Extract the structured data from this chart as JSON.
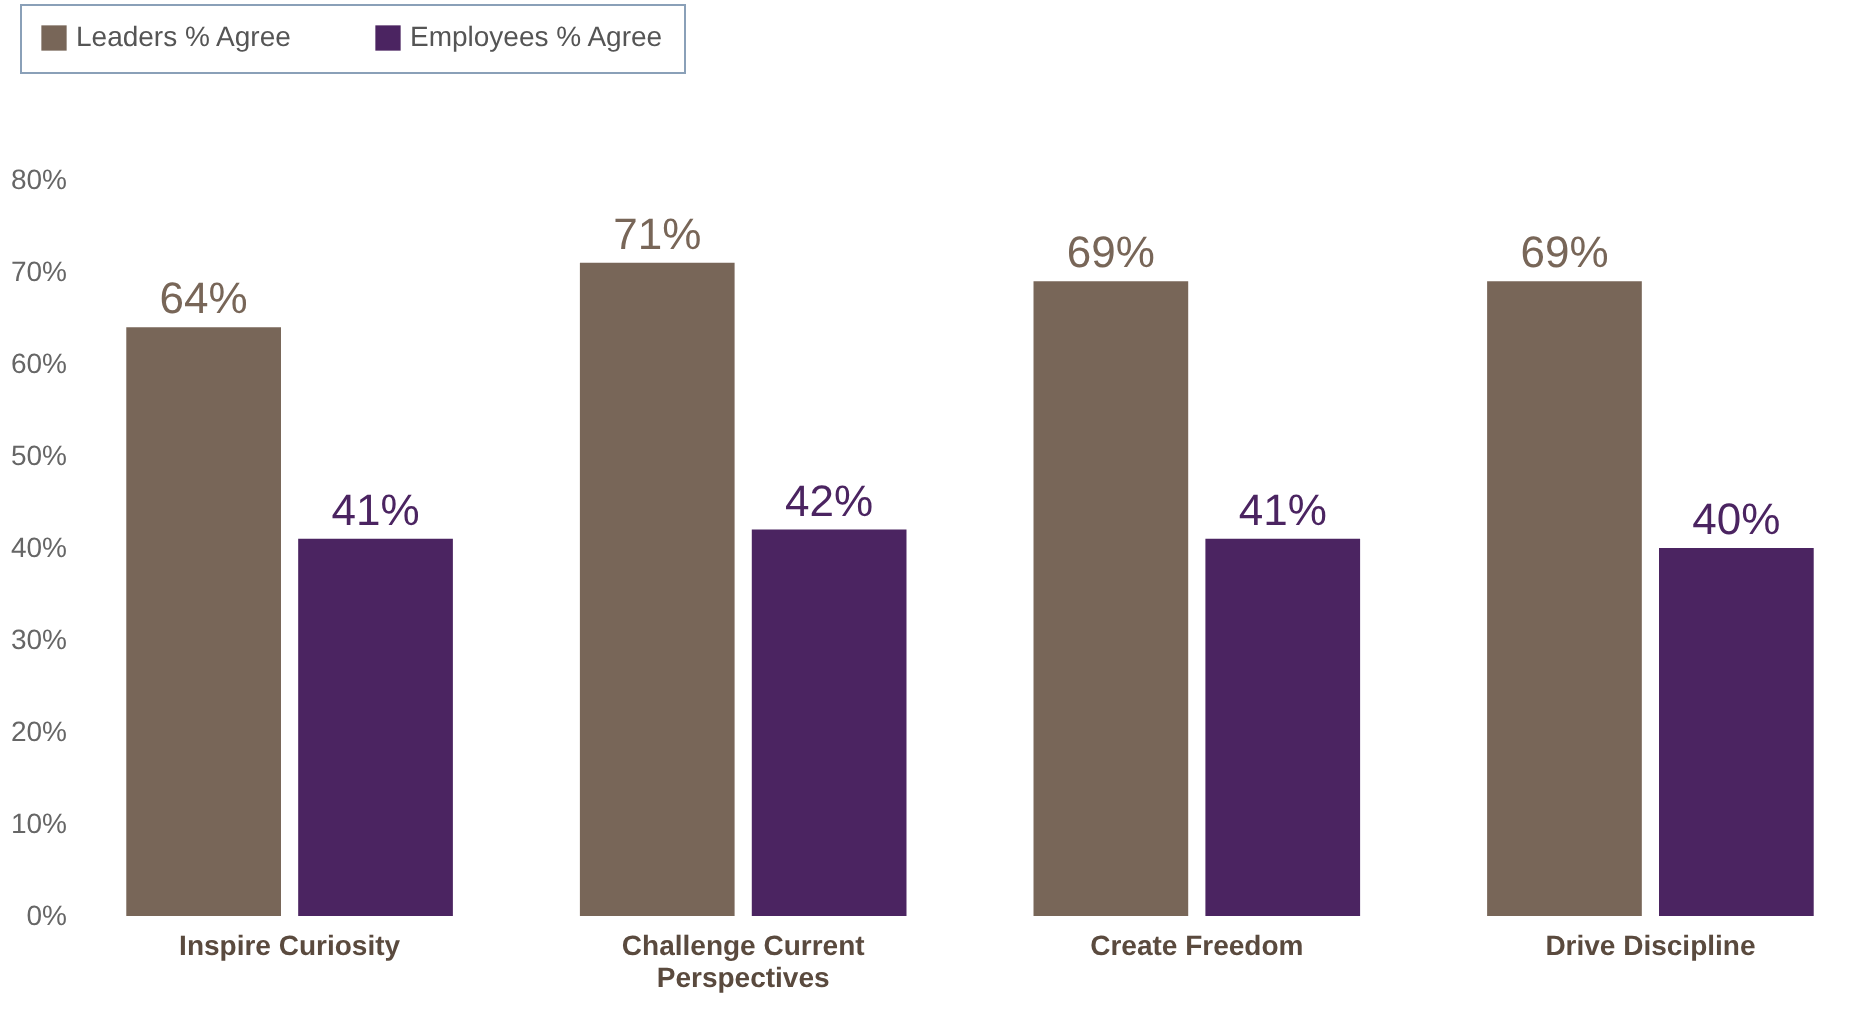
{
  "chart_data": {
    "type": "bar",
    "categories": [
      "Inspire Curiosity",
      "Challenge Current Perspectives",
      "Create Freedom",
      "Drive Discipline"
    ],
    "series": [
      {
        "name": "Leaders % Agree",
        "color": "#786658",
        "values": [
          64,
          71,
          69,
          69
        ],
        "value_labels": [
          "64%",
          "71%",
          "69%",
          "69%"
        ]
      },
      {
        "name": "Employees % Agree",
        "color": "#4b2461",
        "values": [
          41,
          42,
          41,
          40
        ],
        "value_labels": [
          "41%",
          "42%",
          "41%",
          "40%"
        ]
      }
    ],
    "ylim": [
      0,
      80
    ],
    "yticks": [
      {
        "value": 0,
        "label": "0%"
      },
      {
        "value": 10,
        "label": "10%"
      },
      {
        "value": 20,
        "label": "20%"
      },
      {
        "value": 30,
        "label": "30%"
      },
      {
        "value": 40,
        "label": "40%"
      },
      {
        "value": 50,
        "label": "50%"
      },
      {
        "value": 60,
        "label": "60%"
      },
      {
        "value": 70,
        "label": "70%"
      },
      {
        "value": 80,
        "label": "80%"
      }
    ],
    "grid": false,
    "legend": "top left"
  }
}
